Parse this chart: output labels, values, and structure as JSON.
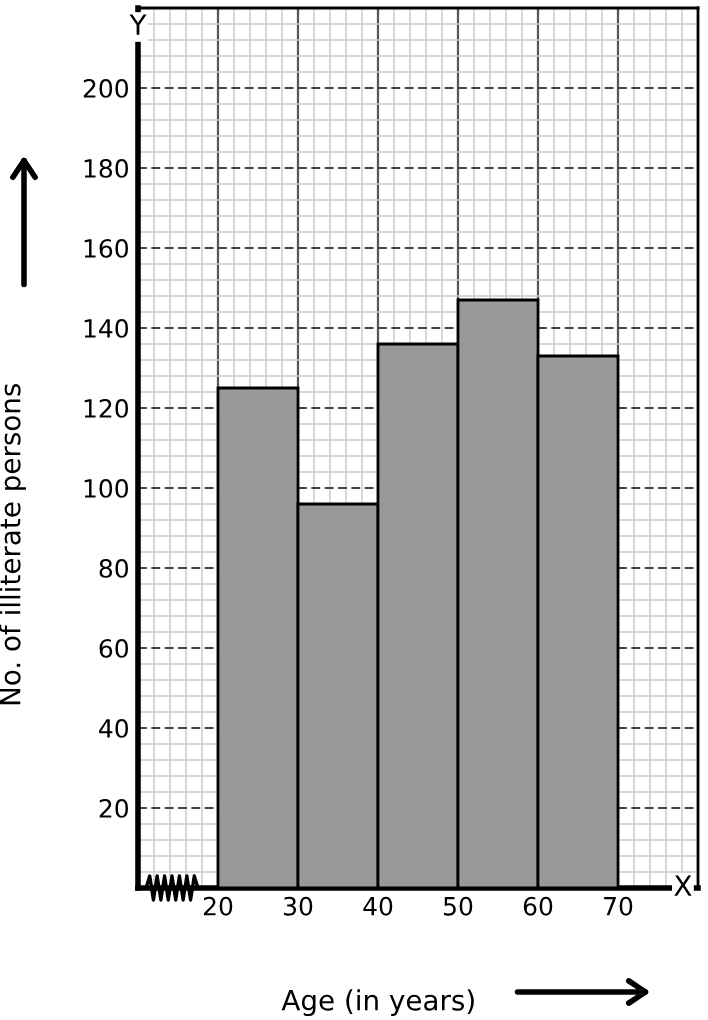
{
  "chart_data": {
    "type": "histogram",
    "xlabel": "Age (in years)",
    "ylabel": "No. of illiterate persons",
    "bins": [
      20,
      30,
      40,
      50,
      60,
      70
    ],
    "values": [
      125,
      96,
      136,
      147,
      133
    ],
    "color": "#999999",
    "xlim": [
      10,
      80
    ],
    "ylim": [
      0,
      220
    ],
    "xticks": [
      20,
      30,
      40,
      50,
      60,
      70
    ],
    "yticks": [
      20,
      40,
      60,
      80,
      100,
      120,
      140,
      160,
      180,
      200
    ],
    "grid": true,
    "annotations": [
      "Y",
      "X"
    ]
  }
}
